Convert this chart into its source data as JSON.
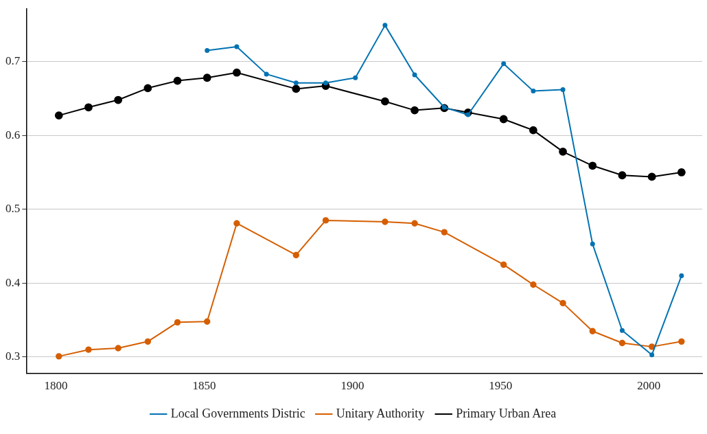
{
  "chart_data": {
    "type": "line",
    "xlim": [
      1790,
      2018
    ],
    "ylim": [
      0.278,
      0.771
    ],
    "xticks": [
      1800,
      1850,
      1900,
      1950,
      2000
    ],
    "yticks": [
      0.3,
      0.4,
      0.5,
      0.6,
      0.7
    ],
    "grid": "y",
    "legend": "bottom",
    "marker": "circle",
    "line_style": "solid",
    "series": [
      {
        "name": "Local Governments Distric",
        "color": "#0072b2",
        "x": [
          1851,
          1861,
          1871,
          1881,
          1891,
          1901,
          1911,
          1921,
          1931,
          1939,
          1951,
          1961,
          1971,
          1981,
          1991,
          2001,
          2011
        ],
        "values": [
          0.715,
          0.72,
          0.683,
          0.671,
          0.671,
          0.678,
          0.749,
          0.682,
          0.638,
          0.628,
          0.697,
          0.66,
          0.662,
          0.453,
          0.336,
          0.303,
          0.41
        ]
      },
      {
        "name": "Unitary Authority",
        "color": "#d55e00",
        "x": [
          1801,
          1811,
          1821,
          1831,
          1841,
          1851,
          1861,
          1881,
          1891,
          1911,
          1921,
          1931,
          1951,
          1961,
          1971,
          1981,
          1991,
          2001,
          2011
        ],
        "values": [
          0.301,
          0.31,
          0.312,
          0.321,
          0.347,
          0.348,
          0.481,
          0.438,
          0.485,
          0.483,
          0.481,
          0.469,
          0.425,
          0.398,
          0.373,
          0.335,
          0.319,
          0.314,
          0.321
        ]
      },
      {
        "name": "Primary Urban Area",
        "color": "#000000",
        "x": [
          1801,
          1811,
          1821,
          1831,
          1841,
          1851,
          1861,
          1881,
          1891,
          1911,
          1921,
          1931,
          1939,
          1951,
          1961,
          1971,
          1981,
          1991,
          2001,
          2011
        ],
        "values": [
          0.627,
          0.638,
          0.648,
          0.664,
          0.674,
          0.678,
          0.685,
          0.663,
          0.667,
          0.646,
          0.634,
          0.637,
          0.631,
          0.622,
          0.607,
          0.578,
          0.559,
          0.546,
          0.544,
          0.55
        ]
      }
    ]
  }
}
